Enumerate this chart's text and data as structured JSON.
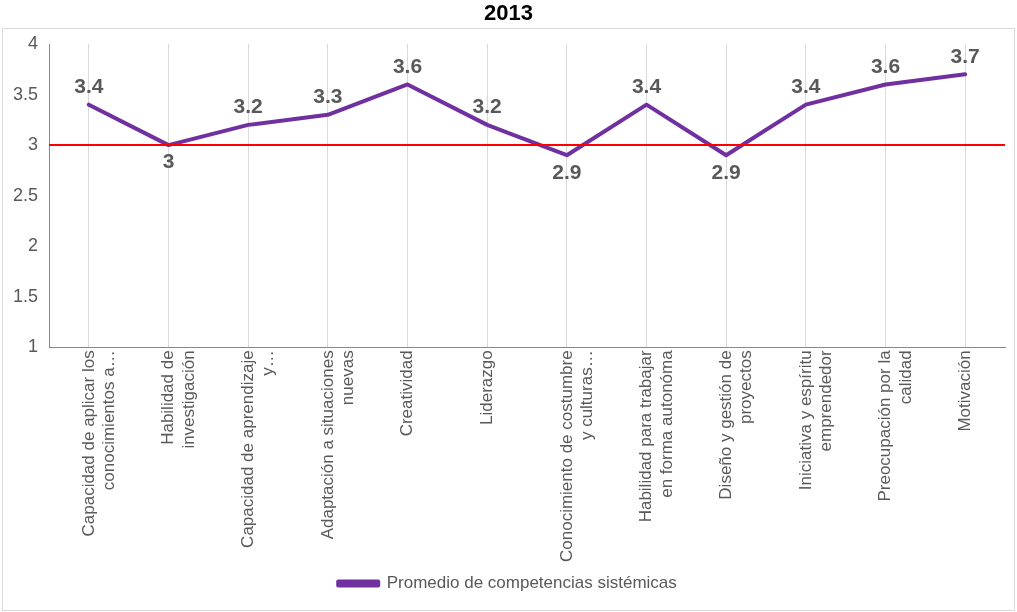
{
  "chart_data": {
    "type": "line",
    "title": "2013",
    "categories": [
      "Capacidad de aplicar los conocimientos a…",
      "Habilidad de investigación",
      "Capacidad de aprendizaje y…",
      "Adaptación a situaciones nuevas",
      "Creatividad",
      "Liderazgo",
      "Conocimiento de costumbre y culturas…",
      "Habilidad para trabajar en forma autonóma",
      "Diseño y gestión de proyectos",
      "Iniciativa y espíritu emprendedor",
      "Preocupación por la calidad",
      "Motivación"
    ],
    "series": [
      {
        "name": "Promedio de competencias sistémicas",
        "color": "#7030a0",
        "values": [
          3.4,
          3,
          3.2,
          3.3,
          3.6,
          3.2,
          2.9,
          3.4,
          2.9,
          3.4,
          3.6,
          3.7
        ]
      }
    ],
    "ylim": [
      1,
      4
    ],
    "yticks": [
      1,
      1.5,
      2,
      2.5,
      3,
      3.5,
      4
    ],
    "ref_lines": [
      {
        "axis": "y",
        "value": 3,
        "color": "#ff0000"
      }
    ],
    "grid": "x",
    "legend": "bottom",
    "marker": "none",
    "line_style": "solid",
    "data_labels": true
  }
}
